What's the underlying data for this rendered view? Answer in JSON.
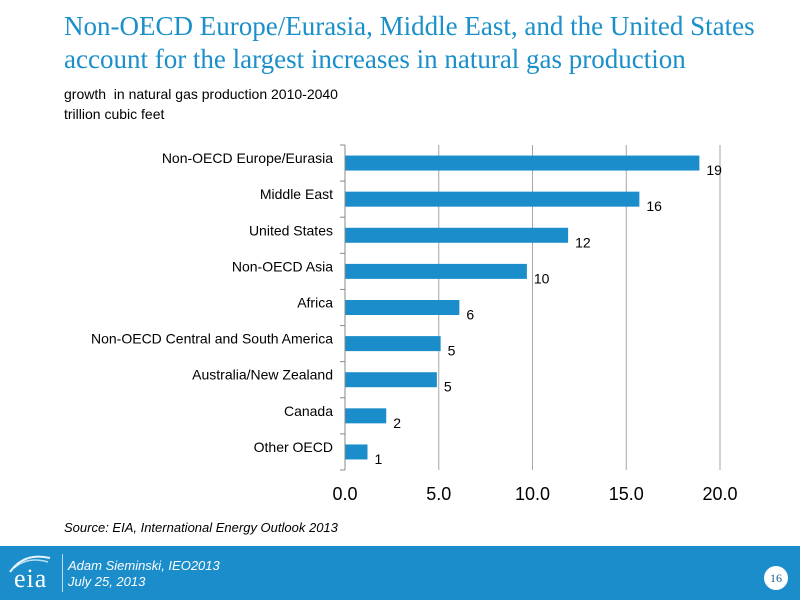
{
  "header": {
    "title": "Non-OECD Europe/Eurasia, Middle East, and the United States account for the largest increases in natural gas production",
    "subtitle_line1": "growth  in natural gas production 2010-2040",
    "subtitle_line2": "trillion cubic feet"
  },
  "chart_data": {
    "type": "bar",
    "orientation": "horizontal",
    "categories": [
      "Non-OECD Europe/Eurasia",
      "Middle East",
      "United States",
      "Non-OECD Asia",
      "Africa",
      "Non-OECD Central and South America",
      "Australia/New Zealand",
      "Canada",
      "Other OECD"
    ],
    "values": [
      18.9,
      15.7,
      11.9,
      9.7,
      6.1,
      5.1,
      4.9,
      2.2,
      1.2
    ],
    "data_labels": [
      "19",
      "16",
      "12",
      "10",
      "6",
      "5",
      "5",
      "2",
      "1"
    ],
    "xlim": [
      0,
      20
    ],
    "xticks": [
      "0.0",
      "5.0",
      "10.0",
      "15.0",
      "20.0"
    ],
    "grid": "vertical",
    "bar_color": "#1b8dcb"
  },
  "source": "Source:  EIA, International Energy Outlook 2013",
  "footer": {
    "logo_text": "eia",
    "presenter": "Adam Sieminski, IEO2013",
    "date": "July 25, 2013",
    "page_number": "16"
  }
}
